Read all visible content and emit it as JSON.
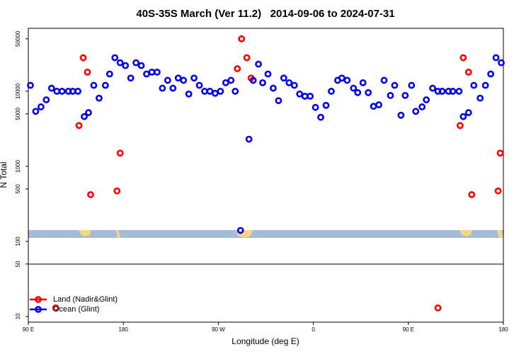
{
  "chart_data": {
    "type": "scatter",
    "title": "40S-35S March (Ver 11.2)   2014-09-06 to 2024-07-31",
    "xlabel": "Longitude (deg E)",
    "ylabel": "N Total",
    "xlim": [
      90,
      540
    ],
    "xticks": [
      {
        "value": 90,
        "label": "90 E"
      },
      {
        "value": 180,
        "label": "180"
      },
      {
        "value": 270,
        "label": "90 W"
      },
      {
        "value": 360,
        "label": "0"
      },
      {
        "value": 450,
        "label": "90 E"
      },
      {
        "value": 540,
        "label": "180"
      }
    ],
    "ylim": [
      8.4,
      69000
    ],
    "log_y": true,
    "yticks": [
      10,
      50,
      100,
      500,
      1000,
      5000,
      10000,
      50000
    ],
    "legend": "bottom-left",
    "series": [
      {
        "name": "Land (Nadir&Glint)",
        "color": "#ff0000",
        "x": [
          116,
          138,
          142,
          146,
          149,
          174,
          177,
          288,
          292,
          297,
          301,
          478,
          499,
          502,
          507,
          510,
          535,
          537
        ],
        "values": [
          13,
          3500,
          28000,
          18000,
          420,
          470,
          1500,
          20000,
          50000,
          28000,
          15000,
          13,
          3500,
          28000,
          18000,
          420,
          470,
          1500
        ]
      },
      {
        "name": "Ocean (Glint)",
        "color": "#0000ee",
        "x": [
          92,
          97,
          102,
          107,
          112,
          117,
          122,
          128,
          132,
          137,
          143,
          147,
          152,
          157,
          163,
          167,
          172,
          177,
          182,
          187,
          192,
          197,
          202,
          207,
          212,
          217,
          222,
          227,
          232,
          237,
          242,
          247,
          252,
          257,
          262,
          267,
          272,
          277,
          282,
          286,
          291,
          299,
          303,
          308,
          312,
          317,
          322,
          327,
          332,
          337,
          342,
          347,
          352,
          357,
          362,
          367,
          372,
          377,
          383,
          387,
          392,
          398,
          402,
          407,
          412,
          417,
          422,
          427,
          433,
          437,
          443,
          447,
          453,
          457,
          463,
          467,
          473,
          478,
          482,
          488,
          492,
          498,
          502,
          507,
          512,
          518,
          523,
          528,
          533,
          538
        ],
        "values": [
          12000,
          5400,
          6200,
          7700,
          11000,
          10000,
          10000,
          10000,
          10000,
          10000,
          4600,
          5200,
          12000,
          8100,
          12000,
          17000,
          28000,
          24000,
          22000,
          15000,
          24000,
          22000,
          17000,
          18000,
          18000,
          11000,
          14000,
          11000,
          15000,
          14000,
          9200,
          15000,
          12000,
          10000,
          10000,
          9400,
          10000,
          13000,
          14000,
          10000,
          140,
          2300,
          14000,
          23000,
          13000,
          17000,
          11000,
          7500,
          15000,
          13000,
          12000,
          9200,
          8600,
          8600,
          6100,
          4500,
          6500,
          10000,
          14000,
          15000,
          14000,
          11000,
          9600,
          13000,
          9600,
          6300,
          6600,
          14000,
          8800,
          12000,
          4800,
          8800,
          12000,
          5400,
          6200,
          7700,
          11000,
          10000,
          10000,
          10000,
          10000,
          10000,
          4600,
          5200,
          12000,
          8100,
          12000,
          17000,
          28000,
          24000
        ]
      }
    ]
  }
}
